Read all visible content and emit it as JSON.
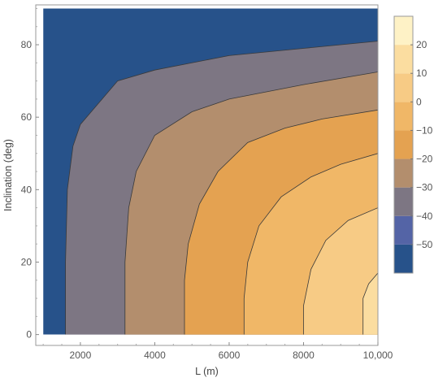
{
  "chart_data": {
    "type": "contour",
    "title": "",
    "xlabel": "L (m)",
    "ylabel": "Inclination (deg)",
    "xlim": [
      800,
      10000
    ],
    "ylim": [
      -3,
      91
    ],
    "plot_x_range": [
      1000,
      10000
    ],
    "plot_y_range": [
      0,
      90
    ],
    "x_ticks": [
      {
        "value": 2000,
        "label": "2000"
      },
      {
        "value": 4000,
        "label": "4000"
      },
      {
        "value": 6000,
        "label": "6000"
      },
      {
        "value": 8000,
        "label": "8000"
      },
      {
        "value": 10000,
        "label": "10,000"
      }
    ],
    "y_ticks": [
      {
        "value": 0,
        "label": "0"
      },
      {
        "value": 20,
        "label": "20"
      },
      {
        "value": 40,
        "label": "40"
      },
      {
        "value": 60,
        "label": "60"
      },
      {
        "value": 80,
        "label": "80"
      }
    ],
    "levels": [
      {
        "range": [
          -60,
          -50
        ],
        "color": "#27528a"
      },
      {
        "range": [
          -50,
          -40
        ],
        "color": "#5464a6"
      },
      {
        "range": [
          -40,
          -30
        ],
        "color": "#7d7683"
      },
      {
        "range": [
          -30,
          -20
        ],
        "color": "#b38e6d"
      },
      {
        "range": [
          -20,
          -10
        ],
        "color": "#e4a251"
      },
      {
        "range": [
          -10,
          0
        ],
        "color": "#f0b767"
      },
      {
        "range": [
          0,
          10
        ],
        "color": "#f7cb85"
      },
      {
        "range": [
          10,
          20
        ],
        "color": "#fbdda0"
      },
      {
        "range": [
          20,
          30
        ],
        "color": "#fef2c6"
      }
    ],
    "contour_lines": [
      {
        "level": -45,
        "points": [
          [
            1600,
            0
          ],
          [
            1600,
            20
          ],
          [
            1650,
            40
          ],
          [
            1800,
            52
          ],
          [
            2000,
            58
          ],
          [
            3000,
            70
          ],
          [
            4000,
            73
          ],
          [
            6000,
            77
          ],
          [
            8000,
            79
          ],
          [
            10000,
            81
          ]
        ]
      },
      {
        "level": -35,
        "points": [
          [
            3200,
            0
          ],
          [
            3200,
            20
          ],
          [
            3300,
            35
          ],
          [
            3500,
            45
          ],
          [
            4000,
            55
          ],
          [
            5000,
            61.5
          ],
          [
            6000,
            65
          ],
          [
            8000,
            69
          ],
          [
            10000,
            72.5
          ]
        ]
      },
      {
        "level": -25,
        "points": [
          [
            4800,
            0
          ],
          [
            4800,
            15
          ],
          [
            4900,
            25
          ],
          [
            5200,
            36
          ],
          [
            5700,
            45
          ],
          [
            6500,
            53
          ],
          [
            7500,
            57
          ],
          [
            8500,
            59.5
          ],
          [
            10000,
            62
          ]
        ]
      },
      {
        "level": -15,
        "points": [
          [
            6400,
            0
          ],
          [
            6400,
            10
          ],
          [
            6500,
            20
          ],
          [
            6800,
            30
          ],
          [
            7400,
            38
          ],
          [
            8200,
            43.5
          ],
          [
            9000,
            47
          ],
          [
            10000,
            50
          ]
        ]
      },
      {
        "level": -5,
        "points": [
          [
            8000,
            0
          ],
          [
            8000,
            8
          ],
          [
            8200,
            18
          ],
          [
            8600,
            26
          ],
          [
            9200,
            31.5
          ],
          [
            10000,
            35
          ]
        ]
      },
      {
        "level": 5,
        "points": [
          [
            9600,
            0
          ],
          [
            9600,
            10
          ],
          [
            9750,
            14
          ],
          [
            10000,
            17
          ]
        ]
      }
    ],
    "colorbar_ticks": [
      {
        "value": 20,
        "label": "20"
      },
      {
        "value": 10,
        "label": "10"
      },
      {
        "value": 0,
        "label": "0"
      },
      {
        "value": -10,
        "label": "−10"
      },
      {
        "value": -20,
        "label": "−20"
      },
      {
        "value": -30,
        "label": "−30"
      },
      {
        "value": -40,
        "label": "−40"
      },
      {
        "value": -50,
        "label": "−50"
      }
    ],
    "colorbar_range": [
      -60,
      30
    ]
  }
}
